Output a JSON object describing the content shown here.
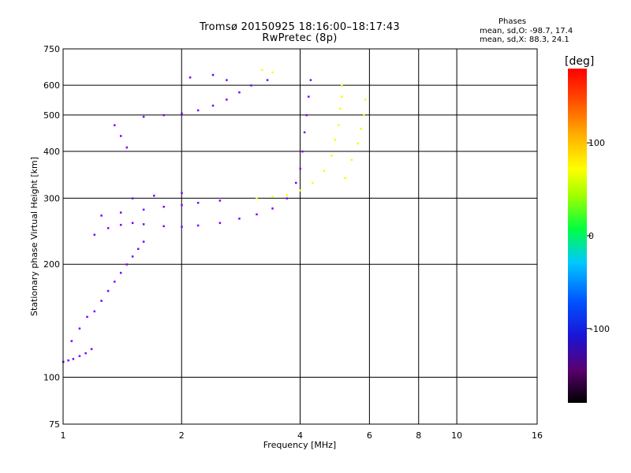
{
  "header": {
    "title_line1": "Tromsø 20150925 18:16:00–18:17:43",
    "title_line2": "RwPretec (8p)"
  },
  "stats": {
    "title": "Phases",
    "o_line": "mean, sd,O: -98.7, 17.4",
    "x_line": "mean, sd,X:  88.3, 24.1"
  },
  "colorbar": {
    "unit": "[deg]",
    "ticks": [
      {
        "label": "100",
        "value": 100
      },
      {
        "label": "0",
        "value": 0
      },
      {
        "label": "-100",
        "value": -100
      }
    ],
    "range": [
      -180,
      180
    ]
  },
  "chart_data": {
    "type": "scatter",
    "title": "Tromsø 20150925 18:16:00–18:17:43",
    "subtitle": "RwPretec (8p)",
    "xlabel": "Frequency [MHz]",
    "ylabel": "Stationary phase Virtual Height [km]",
    "x_scale": "log",
    "y_scale": "log",
    "xlim": [
      1,
      16
    ],
    "ylim": [
      75,
      750
    ],
    "x_ticks": [
      {
        "label": "1",
        "value": 1
      },
      {
        "label": "2",
        "value": 2
      },
      {
        "label": "4",
        "value": 4
      },
      {
        "label": "6",
        "value": 6
      },
      {
        "label": "8",
        "value": 8
      },
      {
        "label": "10",
        "value": 10
      },
      {
        "label": "16",
        "value": 16
      }
    ],
    "y_ticks": [
      {
        "label": "75",
        "value": 75
      },
      {
        "label": "100",
        "value": 100
      },
      {
        "label": "200",
        "value": 200
      },
      {
        "label": "300",
        "value": 300
      },
      {
        "label": "400",
        "value": 400
      },
      {
        "label": "500",
        "value": 500
      },
      {
        "label": "600",
        "value": 600
      },
      {
        "label": "750",
        "value": 750
      }
    ],
    "grid": true,
    "color_scale": "rainbow, phase in degrees from -180 to 180",
    "series": [
      {
        "mode": "O",
        "color_phase": -98.7,
        "points": [
          [
            1.0,
            110
          ],
          [
            1.03,
            111
          ],
          [
            1.06,
            112
          ],
          [
            1.1,
            114
          ],
          [
            1.14,
            116
          ],
          [
            1.18,
            119
          ],
          [
            1.05,
            125
          ],
          [
            1.1,
            135
          ],
          [
            1.15,
            145
          ],
          [
            1.2,
            150
          ],
          [
            1.25,
            160
          ],
          [
            1.3,
            170
          ],
          [
            1.35,
            180
          ],
          [
            1.4,
            190
          ],
          [
            1.45,
            200
          ],
          [
            1.5,
            210
          ],
          [
            1.55,
            220
          ],
          [
            1.6,
            230
          ],
          [
            1.2,
            240
          ],
          [
            1.3,
            250
          ],
          [
            1.4,
            255
          ],
          [
            1.5,
            258
          ],
          [
            1.6,
            256
          ],
          [
            1.8,
            253
          ],
          [
            2.0,
            252
          ],
          [
            2.2,
            254
          ],
          [
            2.5,
            258
          ],
          [
            2.8,
            265
          ],
          [
            3.1,
            272
          ],
          [
            3.4,
            282
          ],
          [
            3.7,
            300
          ],
          [
            3.9,
            330
          ],
          [
            4.0,
            360
          ],
          [
            4.05,
            400
          ],
          [
            4.1,
            450
          ],
          [
            4.15,
            500
          ],
          [
            4.2,
            560
          ],
          [
            4.25,
            620
          ],
          [
            1.25,
            270
          ],
          [
            1.4,
            275
          ],
          [
            1.6,
            280
          ],
          [
            1.8,
            285
          ],
          [
            2.0,
            288
          ],
          [
            2.2,
            292
          ],
          [
            2.5,
            296
          ],
          [
            1.5,
            300
          ],
          [
            1.7,
            305
          ],
          [
            2.0,
            310
          ],
          [
            1.6,
            495
          ],
          [
            1.8,
            500
          ],
          [
            2.0,
            505
          ],
          [
            2.2,
            515
          ],
          [
            2.4,
            530
          ],
          [
            2.6,
            550
          ],
          [
            2.8,
            575
          ],
          [
            3.0,
            600
          ],
          [
            3.3,
            620
          ],
          [
            1.35,
            470
          ],
          [
            1.4,
            440
          ],
          [
            1.45,
            410
          ],
          [
            2.1,
            630
          ],
          [
            2.4,
            640
          ],
          [
            2.6,
            620
          ]
        ]
      },
      {
        "mode": "X",
        "color_phase": 88.3,
        "points": [
          [
            3.1,
            300
          ],
          [
            3.4,
            303
          ],
          [
            3.7,
            306
          ],
          [
            4.0,
            315
          ],
          [
            4.3,
            330
          ],
          [
            4.6,
            355
          ],
          [
            4.8,
            390
          ],
          [
            4.9,
            430
          ],
          [
            5.0,
            470
          ],
          [
            5.05,
            520
          ],
          [
            5.1,
            560
          ],
          [
            5.1,
            600
          ],
          [
            5.2,
            340
          ],
          [
            5.4,
            380
          ],
          [
            5.6,
            420
          ],
          [
            5.7,
            460
          ],
          [
            5.8,
            500
          ],
          [
            5.85,
            550
          ],
          [
            3.2,
            660
          ],
          [
            3.4,
            650
          ]
        ]
      }
    ]
  }
}
